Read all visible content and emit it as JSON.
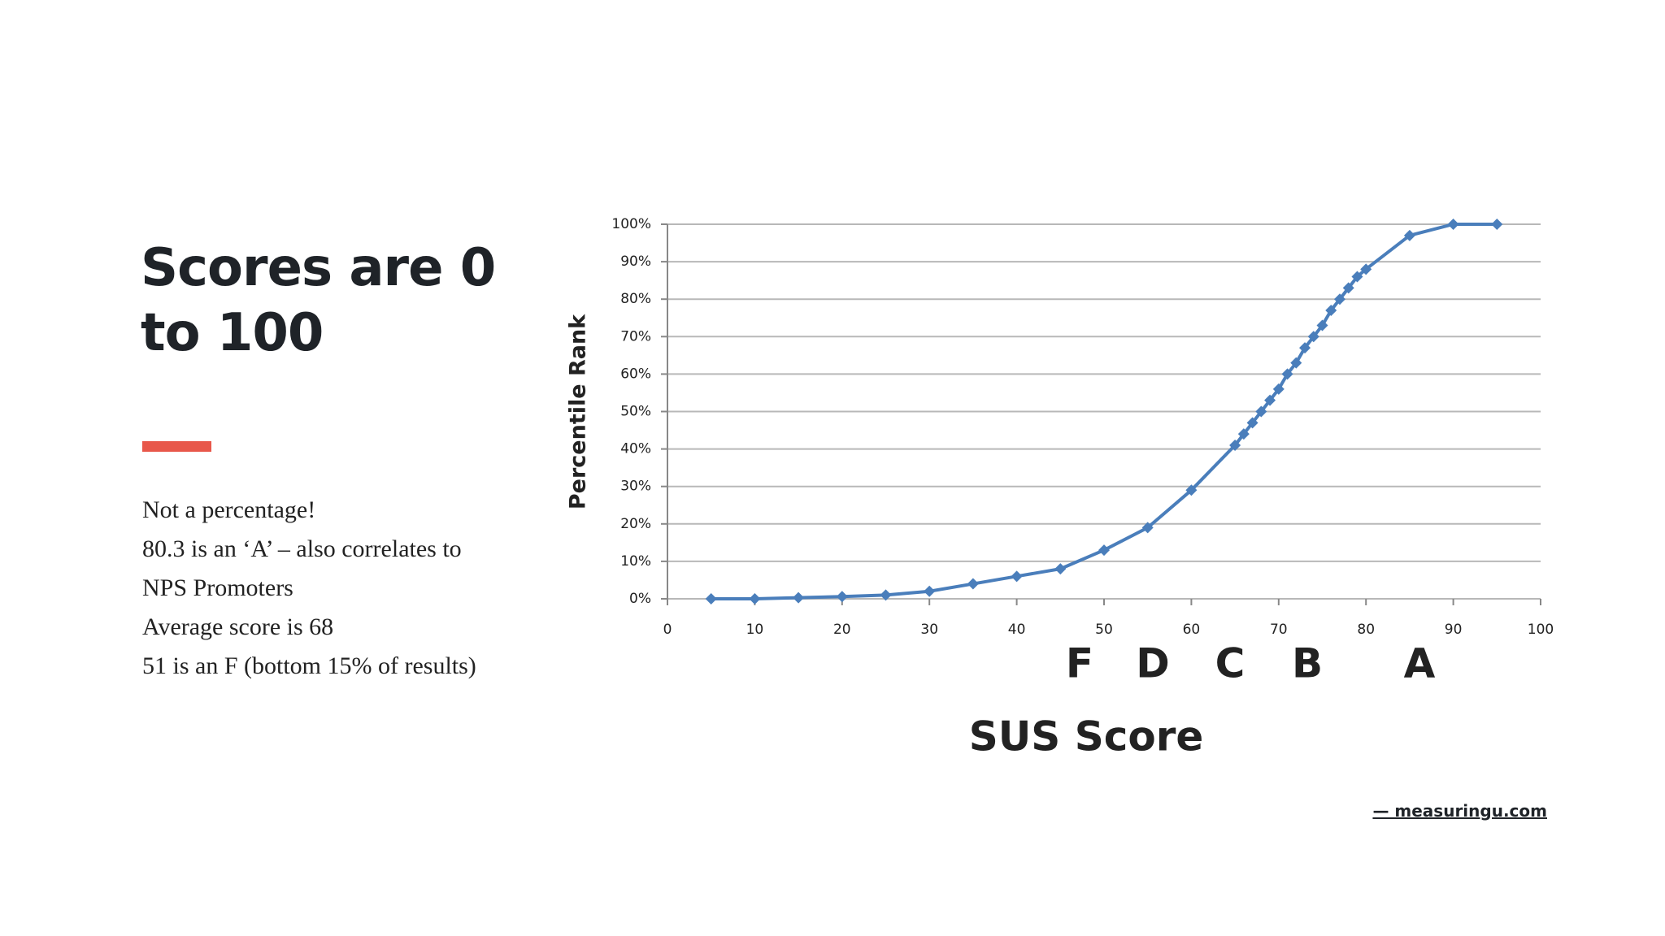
{
  "slide": {
    "title_lines": [
      "Scores are 0",
      "to 100"
    ],
    "body_lines": [
      "Not a percentage!",
      "80.3 is an ‘A’ – also correlates to",
      "NPS Promoters",
      "Average score is 68",
      "51 is an F (bottom 15% of results)"
    ],
    "source": "— measuringu.com"
  },
  "chart_data": {
    "type": "line",
    "x_label": "SUS Score",
    "y_label": "Percentile Rank",
    "annotations": [
      "F",
      "D",
      "C",
      "B",
      "A"
    ],
    "series": [
      {
        "name": "Percentile Rank",
        "color": "#4a7ebb",
        "x": [
          5,
          10,
          15,
          20,
          25,
          30,
          35,
          40,
          45,
          50,
          55,
          60,
          65,
          66,
          67,
          68,
          69,
          70,
          71,
          72,
          73,
          74,
          75,
          76,
          77,
          78,
          79,
          80,
          85,
          90,
          95
        ],
        "values": [
          0,
          0,
          0.3,
          0.6,
          1,
          2,
          4,
          6,
          8,
          13,
          19,
          29,
          41,
          44,
          47,
          50,
          53,
          56,
          60,
          63,
          67,
          70,
          73,
          77,
          80,
          83,
          86,
          88,
          97,
          100,
          100
        ]
      }
    ],
    "xlim": [
      0,
      100
    ],
    "xticks": [
      0,
      10,
      20,
      30,
      40,
      50,
      60,
      70,
      80,
      90,
      100
    ],
    "ylim": [
      0,
      100
    ],
    "yticks": [
      {
        "value": 0,
        "label": "0%"
      },
      {
        "value": 10,
        "label": "10%"
      },
      {
        "value": 20,
        "label": "20%"
      },
      {
        "value": 30,
        "label": "30%"
      },
      {
        "value": 40,
        "label": "40%"
      },
      {
        "value": 50,
        "label": "50%"
      },
      {
        "value": 60,
        "label": "60%"
      },
      {
        "value": 70,
        "label": "70%"
      },
      {
        "value": 80,
        "label": "80%"
      },
      {
        "value": 90,
        "label": "90%"
      },
      {
        "value": 100,
        "label": "100%"
      }
    ],
    "grid": true
  }
}
